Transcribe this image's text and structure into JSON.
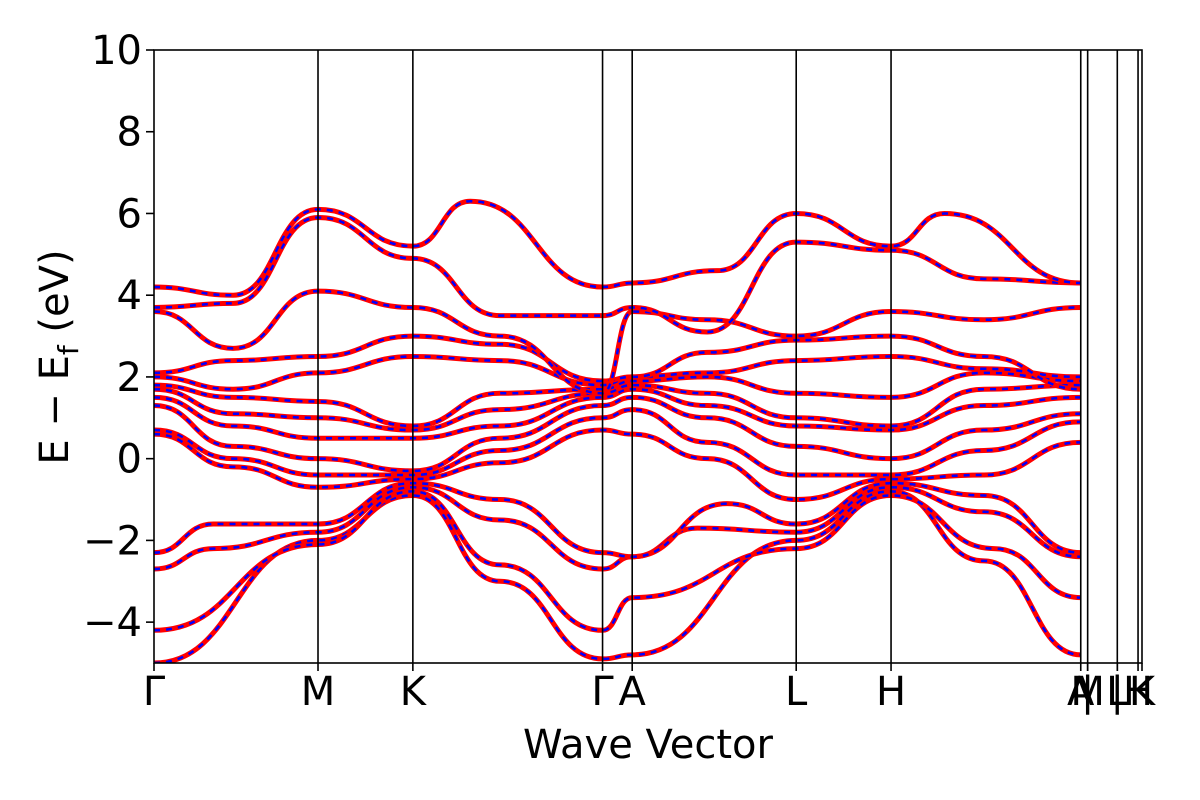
{
  "chart_data": {
    "type": "line",
    "xlabel": "Wave Vector",
    "ylabel_main": "E − E",
    "ylabel_sub": "f",
    "ylabel_unit": " (eV)",
    "ylim": [
      -5,
      10
    ],
    "yticks": [
      -4,
      -2,
      0,
      2,
      4,
      6,
      8,
      10
    ],
    "ytick_labels": [
      "−4",
      "−2",
      "0",
      "2",
      "4",
      "6",
      "8",
      "10"
    ],
    "xlim": [
      0,
      1
    ],
    "kpoints": [
      {
        "label": "Γ",
        "x": 0.0
      },
      {
        "label": "M",
        "x": 0.166
      },
      {
        "label": "K",
        "x": 0.262
      },
      {
        "label": "Γ",
        "x": 0.454
      },
      {
        "label": "A",
        "x": 0.484
      },
      {
        "label": "L",
        "x": 0.65
      },
      {
        "label": "H",
        "x": 0.746
      },
      {
        "label": "A",
        "x": 0.938
      },
      {
        "label": "M",
        "x": 0.945
      },
      {
        "label": "|",
        "x": 0.945
      },
      {
        "label": "L",
        "x": 0.975
      },
      {
        "label": "|",
        "x": 0.975
      },
      {
        "label": "H",
        "x": 0.996
      },
      {
        "label": "K",
        "x": 1.0
      }
    ],
    "colors": {
      "series_a": "#ff0000",
      "series_b": "#0000ff",
      "kline": "#000000"
    },
    "grid": false,
    "series": [
      {
        "points": [
          [
            0,
            -5.0
          ],
          [
            0.166,
            -2.0
          ],
          [
            0.262,
            -0.9
          ],
          [
            0.35,
            -3.0
          ],
          [
            0.454,
            -4.9
          ],
          [
            0.484,
            -4.8
          ],
          [
            0.65,
            -2.0
          ],
          [
            0.746,
            -0.8
          ],
          [
            0.84,
            -2.5
          ],
          [
            0.938,
            -4.8
          ]
        ]
      },
      {
        "points": [
          [
            0,
            -4.2
          ],
          [
            0.166,
            -2.1
          ],
          [
            0.262,
            -0.8
          ],
          [
            0.35,
            -2.6
          ],
          [
            0.454,
            -4.2
          ],
          [
            0.484,
            -3.4
          ],
          [
            0.65,
            -2.2
          ],
          [
            0.746,
            -0.9
          ],
          [
            0.85,
            -2.2
          ],
          [
            0.938,
            -3.4
          ]
        ]
      },
      {
        "points": [
          [
            0,
            -2.7
          ],
          [
            0.06,
            -2.2
          ],
          [
            0.166,
            -1.8
          ],
          [
            0.262,
            -0.7
          ],
          [
            0.35,
            -1.5
          ],
          [
            0.454,
            -2.7
          ],
          [
            0.484,
            -2.4
          ],
          [
            0.55,
            -1.7
          ],
          [
            0.65,
            -1.8
          ],
          [
            0.746,
            -0.7
          ],
          [
            0.84,
            -1.3
          ],
          [
            0.938,
            -2.4
          ]
        ]
      },
      {
        "points": [
          [
            0,
            -2.3
          ],
          [
            0.06,
            -1.6
          ],
          [
            0.166,
            -1.6
          ],
          [
            0.262,
            -0.6
          ],
          [
            0.35,
            -1.0
          ],
          [
            0.454,
            -2.3
          ],
          [
            0.484,
            -2.4
          ],
          [
            0.58,
            -1.1
          ],
          [
            0.65,
            -1.6
          ],
          [
            0.746,
            -0.6
          ],
          [
            0.84,
            -0.9
          ],
          [
            0.938,
            -2.3
          ]
        ]
      },
      {
        "points": [
          [
            0,
            0.6
          ],
          [
            0.08,
            -0.2
          ],
          [
            0.166,
            -0.7
          ],
          [
            0.262,
            -0.5
          ],
          [
            0.35,
            -0.1
          ],
          [
            0.454,
            0.7
          ],
          [
            0.484,
            0.6
          ],
          [
            0.56,
            0.0
          ],
          [
            0.65,
            -1.0
          ],
          [
            0.746,
            -0.5
          ],
          [
            0.84,
            -0.4
          ],
          [
            0.938,
            0.4
          ]
        ]
      },
      {
        "points": [
          [
            0,
            0.7
          ],
          [
            0.08,
            0.0
          ],
          [
            0.166,
            -0.4
          ],
          [
            0.262,
            -0.4
          ],
          [
            0.35,
            0.2
          ],
          [
            0.454,
            1.0
          ],
          [
            0.484,
            1.2
          ],
          [
            0.56,
            0.4
          ],
          [
            0.65,
            -0.4
          ],
          [
            0.746,
            -0.4
          ],
          [
            0.84,
            0.2
          ],
          [
            0.938,
            0.9
          ]
        ]
      },
      {
        "points": [
          [
            0,
            1.3
          ],
          [
            0.08,
            0.3
          ],
          [
            0.166,
            0.0
          ],
          [
            0.262,
            -0.3
          ],
          [
            0.35,
            0.5
          ],
          [
            0.454,
            1.3
          ],
          [
            0.484,
            1.5
          ],
          [
            0.56,
            1.0
          ],
          [
            0.65,
            0.3
          ],
          [
            0.746,
            0.0
          ],
          [
            0.84,
            0.7
          ],
          [
            0.938,
            1.1
          ]
        ]
      },
      {
        "points": [
          [
            0,
            1.5
          ],
          [
            0.08,
            0.8
          ],
          [
            0.166,
            0.5
          ],
          [
            0.262,
            0.5
          ],
          [
            0.35,
            0.8
          ],
          [
            0.454,
            1.5
          ],
          [
            0.484,
            1.7
          ],
          [
            0.56,
            1.3
          ],
          [
            0.65,
            0.8
          ],
          [
            0.746,
            0.7
          ],
          [
            0.84,
            1.3
          ],
          [
            0.938,
            1.5
          ]
        ]
      },
      {
        "points": [
          [
            0,
            1.7
          ],
          [
            0.08,
            1.1
          ],
          [
            0.166,
            1.0
          ],
          [
            0.262,
            0.7
          ],
          [
            0.35,
            1.2
          ],
          [
            0.454,
            1.6
          ],
          [
            0.484,
            1.8
          ],
          [
            0.56,
            1.6
          ],
          [
            0.65,
            1.0
          ],
          [
            0.746,
            0.8
          ],
          [
            0.84,
            1.7
          ],
          [
            0.938,
            1.8
          ]
        ]
      },
      {
        "points": [
          [
            0,
            1.8
          ],
          [
            0.08,
            1.5
          ],
          [
            0.166,
            1.4
          ],
          [
            0.262,
            0.8
          ],
          [
            0.35,
            1.6
          ],
          [
            0.454,
            1.7
          ],
          [
            0.484,
            1.9
          ],
          [
            0.56,
            2.0
          ],
          [
            0.65,
            1.6
          ],
          [
            0.746,
            1.5
          ],
          [
            0.84,
            2.1
          ],
          [
            0.938,
            1.9
          ]
        ]
      },
      {
        "points": [
          [
            0,
            2.0
          ],
          [
            0.08,
            1.7
          ],
          [
            0.166,
            2.1
          ],
          [
            0.262,
            2.5
          ],
          [
            0.35,
            2.4
          ],
          [
            0.454,
            1.8
          ],
          [
            0.484,
            2.0
          ],
          [
            0.56,
            2.1
          ],
          [
            0.65,
            2.4
          ],
          [
            0.746,
            2.5
          ],
          [
            0.84,
            2.2
          ],
          [
            0.938,
            2.0
          ]
        ]
      },
      {
        "points": [
          [
            0,
            2.1
          ],
          [
            0.08,
            2.4
          ],
          [
            0.166,
            2.5
          ],
          [
            0.262,
            3.0
          ],
          [
            0.35,
            2.8
          ],
          [
            0.454,
            1.9
          ],
          [
            0.484,
            2.0
          ],
          [
            0.56,
            2.6
          ],
          [
            0.65,
            2.9
          ],
          [
            0.746,
            3.0
          ],
          [
            0.84,
            2.5
          ],
          [
            0.938,
            1.7
          ]
        ]
      },
      {
        "points": [
          [
            0,
            3.6
          ],
          [
            0.08,
            2.7
          ],
          [
            0.166,
            4.1
          ],
          [
            0.262,
            3.7
          ],
          [
            0.35,
            3.0
          ],
          [
            0.454,
            1.6
          ],
          [
            0.484,
            3.6
          ],
          [
            0.56,
            3.4
          ],
          [
            0.65,
            3.0
          ],
          [
            0.746,
            3.6
          ],
          [
            0.84,
            3.4
          ],
          [
            0.938,
            3.7
          ]
        ]
      },
      {
        "points": [
          [
            0,
            3.7
          ],
          [
            0.08,
            3.8
          ],
          [
            0.166,
            5.9
          ],
          [
            0.262,
            4.9
          ],
          [
            0.35,
            3.5
          ],
          [
            0.454,
            3.5
          ],
          [
            0.484,
            3.7
          ],
          [
            0.56,
            3.1
          ],
          [
            0.65,
            5.3
          ],
          [
            0.746,
            5.1
          ],
          [
            0.84,
            4.4
          ],
          [
            0.938,
            4.3
          ]
        ]
      },
      {
        "points": [
          [
            0,
            4.2
          ],
          [
            0.08,
            4.0
          ],
          [
            0.166,
            6.1
          ],
          [
            0.262,
            5.2
          ],
          [
            0.32,
            6.3
          ],
          [
            0.454,
            4.2
          ],
          [
            0.484,
            4.3
          ],
          [
            0.57,
            4.6
          ],
          [
            0.65,
            6.0
          ],
          [
            0.746,
            5.2
          ],
          [
            0.8,
            6.0
          ],
          [
            0.938,
            4.3
          ]
        ]
      }
    ]
  }
}
